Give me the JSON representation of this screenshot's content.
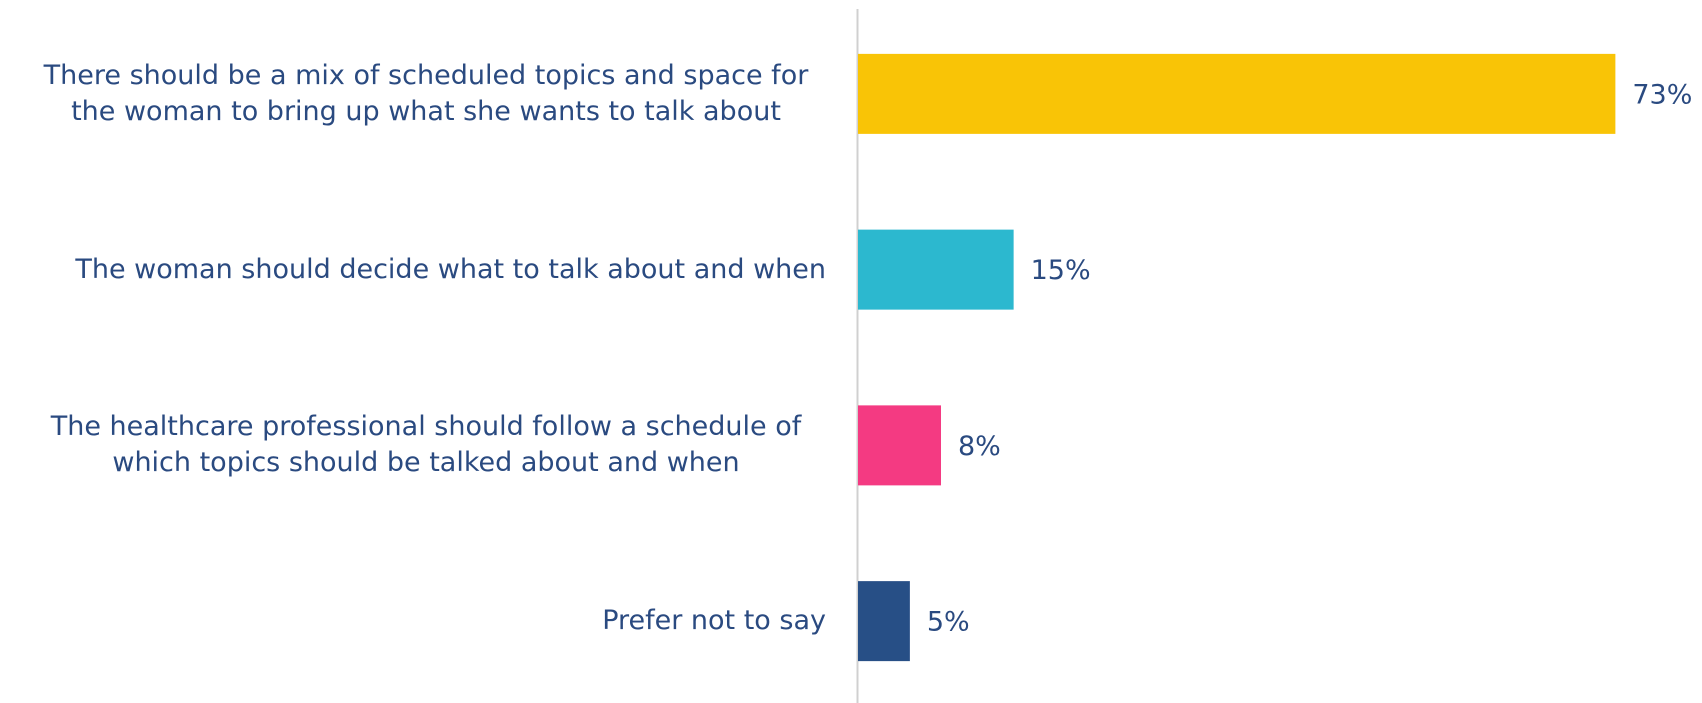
{
  "chart_data": {
    "type": "bar",
    "orientation": "horizontal",
    "categories": [
      "There should be a mix of scheduled topics and space for the woman to bring up what she wants to talk about",
      "The woman should decide what to talk about and when",
      "The healthcare professional should follow a schedule of which topics should be talked about and when",
      "Prefer not to say"
    ],
    "values": [
      73,
      15,
      8,
      5
    ],
    "value_labels": [
      "73%",
      "15%",
      "8%",
      "5%"
    ],
    "colors": [
      "#f9c406",
      "#2cb8cf",
      "#f43a82",
      "#274f86"
    ],
    "xlim": [
      0,
      80
    ]
  }
}
